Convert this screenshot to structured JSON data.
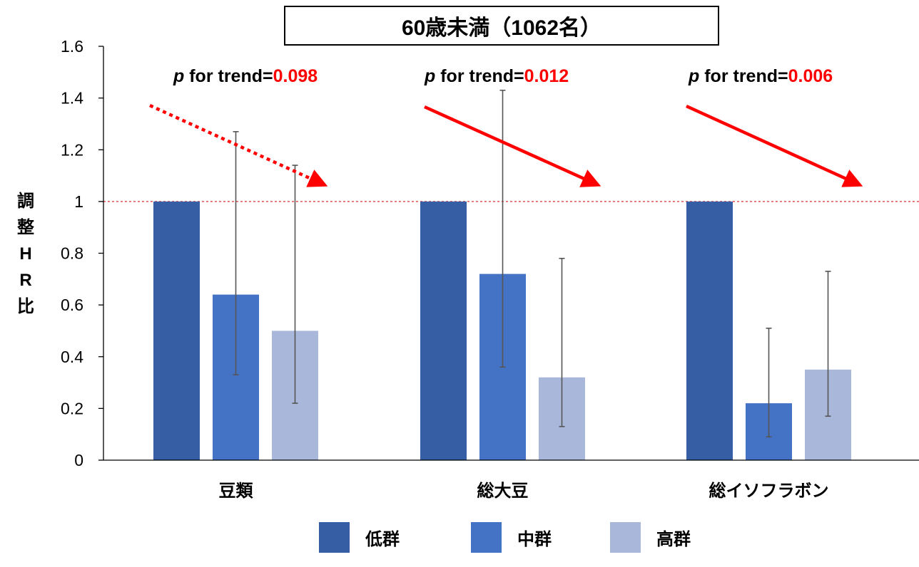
{
  "chart_data": {
    "type": "bar",
    "title": "60歳未満（1062名）",
    "ylabel": "調整HR比",
    "ylabel_chars": [
      "調",
      "整",
      "H",
      "R",
      "比"
    ],
    "ylim": [
      0,
      1.6
    ],
    "yticks": [
      "0",
      "0.2",
      "0.4",
      "0.6",
      "0.8",
      "1",
      "1.2",
      "1.4",
      "1.6"
    ],
    "reference_line": 1,
    "categories": [
      "豆類",
      "総大豆",
      "総イソフラボン"
    ],
    "series": [
      {
        "name": "低群",
        "color": "#365ea4",
        "values": [
          1,
          1,
          1
        ],
        "error_low": [
          null,
          null,
          null
        ],
        "error_high": [
          null,
          null,
          null
        ]
      },
      {
        "name": "中群",
        "color": "#4472c4",
        "values": [
          0.64,
          0.72,
          0.22
        ],
        "error_low": [
          0.33,
          0.36,
          0.09
        ],
        "error_high": [
          1.27,
          1.43,
          0.51
        ]
      },
      {
        "name": "高群",
        "color": "#a9b7da",
        "values": [
          0.5,
          0.32,
          0.35
        ],
        "error_low": [
          0.22,
          0.13,
          0.17
        ],
        "error_high": [
          1.14,
          0.78,
          0.73
        ]
      }
    ],
    "trend": [
      {
        "prefix": "p",
        "text": " for trend=",
        "value": "0.098",
        "style": "dotted"
      },
      {
        "prefix": "p",
        "text": " for trend=",
        "value": "0.012",
        "style": "solid"
      },
      {
        "prefix": "p",
        "text": " for trend=",
        "value": "0.006",
        "style": "solid"
      }
    ],
    "colors": {
      "trend_value": "#ff0000",
      "arrow": "#ff0000",
      "reference_line": "#e03030",
      "error_bar": "#555555"
    },
    "legend_position": "bottom"
  }
}
